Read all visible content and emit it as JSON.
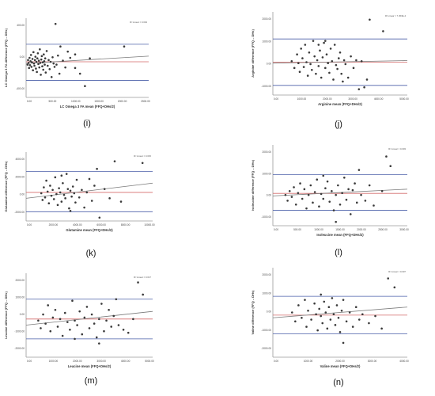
{
  "colors": {
    "point": "#3a3a3a",
    "loa_line": "#4a5fa8",
    "mean_line": "#d46a6a",
    "fit_line": "#7a7a7a",
    "axis": "#9a9a9a",
    "caption": "#111111"
  },
  "chart_data": [
    {
      "panel_label": "(i)",
      "type": "scatter",
      "xlabel": "LC Omega 3 FA mean (FFQ+DHs/2)",
      "ylabel": "LC Omega 3 FA difference (FFQ – DHs)",
      "r2_label": "R² Linear = 0.004",
      "xticks": [
        "0.00",
        "500.00",
        "1000.00",
        "1500.00",
        "2000.00",
        "2500.00"
      ],
      "yticks": [
        "-400.00",
        "0.00",
        "400.00"
      ],
      "xlim": [
        0,
        2500
      ],
      "ylim": [
        -600,
        800
      ],
      "loa_upper": 340,
      "loa_lower": -300,
      "mean_diff": 30,
      "fit": [
        [
          0,
          0
        ],
        [
          2500,
          130
        ]
      ],
      "points": [
        [
          30,
          -20
        ],
        [
          40,
          60
        ],
        [
          50,
          10
        ],
        [
          60,
          -80
        ],
        [
          70,
          100
        ],
        [
          80,
          -30
        ],
        [
          90,
          40
        ],
        [
          100,
          150
        ],
        [
          110,
          -60
        ],
        [
          120,
          20
        ],
        [
          130,
          80
        ],
        [
          140,
          -120
        ],
        [
          150,
          200
        ],
        [
          160,
          0
        ],
        [
          170,
          -40
        ],
        [
          180,
          60
        ],
        [
          190,
          120
        ],
        [
          200,
          -90
        ],
        [
          210,
          30
        ],
        [
          220,
          -150
        ],
        [
          230,
          90
        ],
        [
          240,
          180
        ],
        [
          250,
          -10
        ],
        [
          260,
          50
        ],
        [
          270,
          -70
        ],
        [
          280,
          250
        ],
        [
          290,
          10
        ],
        [
          300,
          -200
        ],
        [
          310,
          70
        ],
        [
          320,
          130
        ],
        [
          330,
          -50
        ],
        [
          340,
          20
        ],
        [
          350,
          -110
        ],
        [
          360,
          160
        ],
        [
          370,
          40
        ],
        [
          380,
          -20
        ],
        [
          390,
          90
        ],
        [
          400,
          -160
        ],
        [
          420,
          220
        ],
        [
          440,
          -40
        ],
        [
          460,
          60
        ],
        [
          480,
          -100
        ],
        [
          500,
          30
        ],
        [
          520,
          -240
        ],
        [
          540,
          110
        ],
        [
          560,
          0
        ],
        [
          580,
          -60
        ],
        [
          600,
          700
        ],
        [
          620,
          -20
        ],
        [
          650,
          140
        ],
        [
          680,
          -180
        ],
        [
          700,
          300
        ],
        [
          750,
          50
        ],
        [
          800,
          -70
        ],
        [
          850,
          210
        ],
        [
          900,
          100
        ],
        [
          1000,
          160
        ],
        [
          1100,
          -180
        ],
        [
          1200,
          -400
        ],
        [
          1000,
          -80
        ],
        [
          2000,
          300
        ],
        [
          1300,
          90
        ]
      ]
    },
    {
      "panel_label": "(j)",
      "type": "scatter",
      "xlabel": "Arginine mean (FFQ+DHs/2)",
      "ylabel": "Arginine difference (FFQ – DHs)",
      "r2_label": "R² Linear = 7.453E-4",
      "xticks": [
        "0.00",
        "1000.00",
        "2000.00",
        "3000.00",
        "4000.00",
        "5000.00"
      ],
      "yticks": [
        "-1000.00",
        "0.00",
        "1000.00",
        "2000.00"
      ],
      "xlim": [
        0,
        5000
      ],
      "ylim": [
        -1500,
        2800
      ],
      "loa_upper": 1400,
      "loa_lower": -1000,
      "mean_diff": 200,
      "fit": [
        [
          0,
          150
        ],
        [
          5000,
          280
        ]
      ],
      "points": [
        [
          700,
          250
        ],
        [
          800,
          -100
        ],
        [
          900,
          600
        ],
        [
          950,
          150
        ],
        [
          1000,
          -300
        ],
        [
          1050,
          900
        ],
        [
          1100,
          400
        ],
        [
          1150,
          -50
        ],
        [
          1200,
          1100
        ],
        [
          1250,
          200
        ],
        [
          1300,
          -500
        ],
        [
          1350,
          700
        ],
        [
          1400,
          100
        ],
        [
          1450,
          -200
        ],
        [
          1500,
          1300
        ],
        [
          1550,
          500
        ],
        [
          1600,
          -400
        ],
        [
          1650,
          300
        ],
        [
          1700,
          0
        ],
        [
          1750,
          800
        ],
        [
          1800,
          -600
        ],
        [
          1850,
          450
        ],
        [
          1900,
          1200
        ],
        [
          1950,
          -100
        ],
        [
          2000,
          600
        ],
        [
          2050,
          150
        ],
        [
          2100,
          -350
        ],
        [
          2150,
          900
        ],
        [
          2200,
          250
        ],
        [
          2250,
          -700
        ],
        [
          2300,
          1100
        ],
        [
          2350,
          50
        ],
        [
          2400,
          -150
        ],
        [
          2450,
          400
        ],
        [
          2500,
          700
        ],
        [
          2550,
          -400
        ],
        [
          2600,
          -800
        ],
        [
          2650,
          300
        ],
        [
          2700,
          100
        ],
        [
          2800,
          -600
        ],
        [
          2900,
          500
        ],
        [
          3000,
          -100
        ],
        [
          3100,
          300
        ],
        [
          3200,
          -1200
        ],
        [
          3400,
          -1100
        ],
        [
          3500,
          -700
        ],
        [
          3600,
          2400
        ],
        [
          4100,
          1800
        ],
        [
          3300,
          250
        ],
        [
          1700,
          1100
        ],
        [
          1950,
          1300
        ]
      ]
    },
    {
      "panel_label": "(k)",
      "type": "scatter",
      "xlabel": "Glutamine mean (FFQ+DHs/2)",
      "ylabel": "Glutamine difference (FFQ – DHs)",
      "r2_label": "R² Linear = 0.015",
      "xticks": [
        "0.00",
        "2000.00",
        "4000.00",
        "6000.00",
        "8000.00",
        "10000.00"
      ],
      "yticks": [
        "-2000.00",
        "0.00",
        "2000.00",
        "4000.00"
      ],
      "xlim": [
        0,
        10000
      ],
      "ylim": [
        -3000,
        5200
      ],
      "loa_upper": 2900,
      "loa_lower": -1900,
      "mean_diff": 400,
      "fit": [
        [
          0,
          -300
        ],
        [
          10000,
          1500
        ]
      ],
      "points": [
        [
          1200,
          300
        ],
        [
          1300,
          -500
        ],
        [
          1400,
          1000
        ],
        [
          1500,
          -200
        ],
        [
          1600,
          1800
        ],
        [
          1700,
          500
        ],
        [
          1800,
          -900
        ],
        [
          1900,
          1200
        ],
        [
          2000,
          0
        ],
        [
          2100,
          700
        ],
        [
          2200,
          -400
        ],
        [
          2300,
          2200
        ],
        [
          2400,
          200
        ],
        [
          2500,
          -1100
        ],
        [
          2600,
          900
        ],
        [
          2700,
          400
        ],
        [
          2800,
          -700
        ],
        [
          2900,
          1500
        ],
        [
          3000,
          100
        ],
        [
          3100,
          -300
        ],
        [
          3200,
          2600
        ],
        [
          3300,
          800
        ],
        [
          3400,
          -1500
        ],
        [
          3500,
          600
        ],
        [
          3600,
          -100
        ],
        [
          3700,
          1100
        ],
        [
          3800,
          300
        ],
        [
          3900,
          -800
        ],
        [
          4000,
          1900
        ],
        [
          4200,
          -200
        ],
        [
          4400,
          700
        ],
        [
          4600,
          -1400
        ],
        [
          4800,
          400
        ],
        [
          5000,
          2000
        ],
        [
          5200,
          -600
        ],
        [
          5400,
          1200
        ],
        [
          5600,
          3200
        ],
        [
          5800,
          -2600
        ],
        [
          6200,
          800
        ],
        [
          6600,
          -300
        ],
        [
          7000,
          4100
        ],
        [
          7500,
          -700
        ],
        [
          9200,
          3900
        ],
        [
          2800,
          2400
        ],
        [
          3500,
          -1800
        ]
      ]
    },
    {
      "panel_label": "(l)",
      "type": "scatter",
      "xlabel": "Isoleucine mean (FFQ+DHs/2)",
      "ylabel": "Isoleucine difference (FFQ – DHs)",
      "r2_label": "R² Linear = 0.003",
      "xticks": [
        "0.00",
        "500.00",
        "1000.00",
        "1500.00",
        "2000.00",
        "2500.00",
        "3000.00"
      ],
      "yticks": [
        "-1000.00",
        "0.00",
        "1000.00",
        "2000.00"
      ],
      "xlim": [
        0,
        3200
      ],
      "ylim": [
        -1500,
        2700
      ],
      "loa_upper": 1150,
      "loa_lower": -700,
      "mean_diff": 180,
      "fit": [
        [
          0,
          50
        ],
        [
          3200,
          400
        ]
      ],
      "points": [
        [
          300,
          100
        ],
        [
          350,
          -200
        ],
        [
          400,
          300
        ],
        [
          450,
          0
        ],
        [
          500,
          500
        ],
        [
          550,
          -400
        ],
        [
          600,
          200
        ],
        [
          650,
          700
        ],
        [
          700,
          -100
        ],
        [
          750,
          400
        ],
        [
          800,
          -600
        ],
        [
          850,
          100
        ],
        [
          900,
          600
        ],
        [
          950,
          -300
        ],
        [
          1000,
          250
        ],
        [
          1050,
          900
        ],
        [
          1100,
          -500
        ],
        [
          1150,
          150
        ],
        [
          1200,
          -100
        ],
        [
          1250,
          450
        ],
        [
          1300,
          800
        ],
        [
          1350,
          -250
        ],
        [
          1400,
          300
        ],
        [
          1450,
          -700
        ],
        [
          1500,
          100
        ],
        [
          1550,
          600
        ],
        [
          1600,
          -400
        ],
        [
          1650,
          200
        ],
        [
          1700,
          1000
        ],
        [
          1750,
          -150
        ],
        [
          1800,
          400
        ],
        [
          1850,
          -900
        ],
        [
          1900,
          350
        ],
        [
          1950,
          700
        ],
        [
          2000,
          -300
        ],
        [
          2050,
          1400
        ],
        [
          2100,
          100
        ],
        [
          2200,
          -200
        ],
        [
          2300,
          600
        ],
        [
          2400,
          -450
        ],
        [
          2600,
          300
        ],
        [
          2700,
          2100
        ],
        [
          2800,
          1600
        ],
        [
          1200,
          1100
        ],
        [
          1500,
          -1300
        ]
      ]
    },
    {
      "panel_label": "(m)",
      "type": "scatter",
      "xlabel": "Leucine mean (FFQ+DHs/2)",
      "ylabel": "Leucine difference (FFQ – DHs)",
      "r2_label": "R² Linear = 0.017",
      "xticks": [
        "0.00",
        "1000.00",
        "2000.00",
        "3000.00",
        "4000.00",
        "5000.00"
      ],
      "yticks": [
        "-2000.00",
        "-1000.00",
        "0.00",
        "1000.00",
        "2000.00"
      ],
      "xlim": [
        0,
        5200
      ],
      "ylim": [
        -2200,
        3300
      ],
      "loa_upper": 1600,
      "loa_lower": -1000,
      "mean_diff": 300,
      "fit": [
        [
          0,
          -100
        ],
        [
          5200,
          800
        ]
      ],
      "points": [
        [
          500,
          200
        ],
        [
          600,
          -300
        ],
        [
          700,
          600
        ],
        [
          800,
          0
        ],
        [
          900,
          1200
        ],
        [
          1000,
          -500
        ],
        [
          1100,
          400
        ],
        [
          1200,
          900
        ],
        [
          1300,
          -200
        ],
        [
          1400,
          300
        ],
        [
          1500,
          -800
        ],
        [
          1600,
          700
        ],
        [
          1700,
          100
        ],
        [
          1800,
          -400
        ],
        [
          1900,
          1500
        ],
        [
          2000,
          200
        ],
        [
          2100,
          -100
        ],
        [
          2200,
          800
        ],
        [
          2300,
          -700
        ],
        [
          2400,
          400
        ],
        [
          2500,
          1100
        ],
        [
          2600,
          -300
        ],
        [
          2700,
          600
        ],
        [
          2800,
          0
        ],
        [
          2900,
          -900
        ],
        [
          3000,
          300
        ],
        [
          3100,
          1300
        ],
        [
          3200,
          -500
        ],
        [
          3300,
          200
        ],
        [
          3400,
          900
        ],
        [
          3500,
          -200
        ],
        [
          3600,
          500
        ],
        [
          3800,
          -100
        ],
        [
          4000,
          -400
        ],
        [
          4200,
          -600
        ],
        [
          4400,
          300
        ],
        [
          4600,
          2700
        ],
        [
          4800,
          1900
        ],
        [
          3700,
          1600
        ],
        [
          3000,
          -1300
        ],
        [
          2000,
          -1000
        ]
      ]
    },
    {
      "panel_label": "(n)",
      "type": "scatter",
      "xlabel": "Valine mean (FFQ+DHs/2)",
      "ylabel": "Valine difference (FFQ – DHs)",
      "r2_label": "R² Linear = 0.007",
      "xticks": [
        "0.00",
        "1000.00",
        "2000.00",
        "3000.00",
        "4000.00"
      ],
      "yticks": [
        "-2000.00",
        "-1000.00",
        "0.00",
        "1000.00",
        "2000.00"
      ],
      "xlim": [
        0,
        4200
      ],
      "ylim": [
        -2200,
        2800
      ],
      "loa_upper": 1200,
      "loa_lower": -900,
      "mean_diff": 150,
      "fit": [
        [
          0,
          0
        ],
        [
          4200,
          600
        ]
      ],
      "points": [
        [
          600,
          300
        ],
        [
          700,
          -200
        ],
        [
          800,
          700
        ],
        [
          900,
          0
        ],
        [
          1000,
          1000
        ],
        [
          1050,
          -500
        ],
        [
          1100,
          400
        ],
        [
          1200,
          -100
        ],
        [
          1300,
          800
        ],
        [
          1350,
          200
        ],
        [
          1400,
          -700
        ],
        [
          1450,
          500
        ],
        [
          1500,
          100
        ],
        [
          1550,
          -300
        ],
        [
          1600,
          900
        ],
        [
          1650,
          300
        ],
        [
          1700,
          -600
        ],
        [
          1750,
          600
        ],
        [
          1800,
          -100
        ],
        [
          1850,
          1100
        ],
        [
          1900,
          200
        ],
        [
          1950,
          -400
        ],
        [
          2000,
          700
        ],
        [
          2050,
          0
        ],
        [
          2100,
          -800
        ],
        [
          2150,
          400
        ],
        [
          2200,
          1000
        ],
        [
          2300,
          -200
        ],
        [
          2400,
          300
        ],
        [
          2500,
          -500
        ],
        [
          2600,
          600
        ],
        [
          2700,
          -100
        ],
        [
          2800,
          200
        ],
        [
          3000,
          -300
        ],
        [
          3200,
          100
        ],
        [
          3400,
          -600
        ],
        [
          3600,
          2200
        ],
        [
          3800,
          1700
        ],
        [
          2200,
          -1400
        ],
        [
          1500,
          1300
        ]
      ]
    }
  ]
}
